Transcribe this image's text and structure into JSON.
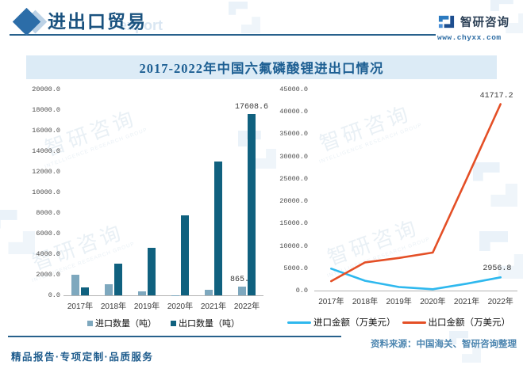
{
  "header": {
    "title": "进出口贸易",
    "ghost_text": "export",
    "brand": {
      "name": "智研咨询",
      "url": "www.chyxx.com"
    }
  },
  "chart_title": "2017-2022年中国六氟磷酸锂进出口情况",
  "chart_data": [
    {
      "type": "bar",
      "categories": [
        "2017年",
        "2018年",
        "2019年",
        "2020年",
        "2021年",
        "2022年"
      ],
      "series": [
        {
          "name": "进口数量（吨）",
          "color": "#7ea8be",
          "values": [
            2000,
            1100,
            400,
            30,
            550,
            865
          ],
          "point_labels": {
            "5": "865.0"
          }
        },
        {
          "name": "出口数量（吨）",
          "color": "#10617f",
          "values": [
            800,
            3050,
            4600,
            7800,
            13000,
            17608.6
          ],
          "point_labels": {
            "5": "17608.6"
          }
        }
      ],
      "ylim": [
        0,
        20000
      ],
      "yticks": [
        "20000.0",
        "18000.0",
        "16000.0",
        "14000.0",
        "12000.0",
        "10000.0",
        "8000.0",
        "6000.0",
        "4000.0",
        "2000.0",
        "0.0"
      ],
      "grid": false,
      "legend_position": "bottom"
    },
    {
      "type": "line",
      "categories": [
        "2017年",
        "2018年",
        "2019年",
        "2020年",
        "2021年",
        "2022年"
      ],
      "series": [
        {
          "name": "进口金额（万美元）",
          "color": "#2eb8ee",
          "values": [
            4900,
            2200,
            800,
            300,
            1550,
            2956.8
          ],
          "point_labels": {
            "5": "2956.8"
          }
        },
        {
          "name": "出口金额（万美元）",
          "color": "#e44f26",
          "values": [
            2100,
            6300,
            7300,
            8500,
            25000,
            41717.2
          ],
          "point_labels": {
            "5": "41717.2"
          }
        }
      ],
      "ylim": [
        0,
        45000
      ],
      "yticks": [
        "45000.0",
        "40000.0",
        "35000.0",
        "30000.0",
        "25000.0",
        "20000.0",
        "15000.0",
        "10000.0",
        "5000.0",
        "0.0"
      ],
      "grid": false,
      "legend_position": "bottom"
    }
  ],
  "footer": {
    "source": "资料来源：中国海关、智研咨询整理",
    "slogan": "精品报告·专项定制·品质服务"
  },
  "watermark": {
    "logo_text": "智研咨询",
    "group_text": "INTELLIGENCE RESEARCH GROUP"
  }
}
